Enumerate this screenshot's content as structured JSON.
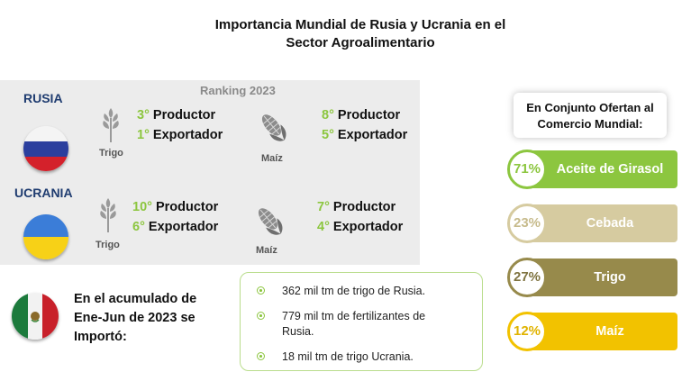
{
  "title": {
    "line1": "Importancia Mundial de Rusia y Ucrania en el",
    "line2": "Sector Agroalimentario"
  },
  "ranking_label": "Ranking 2023",
  "countries": [
    {
      "name": "RUSIA",
      "wheat": {
        "label": "Trigo",
        "productor_num": "3°",
        "productor_text": " Productor",
        "exportador_num": "1°",
        "exportador_text": " Exportador"
      },
      "corn": {
        "label": "Maíz",
        "productor_num": "8°",
        "productor_text": " Productor",
        "exportador_num": "5°",
        "exportador_text": " Exportador"
      }
    },
    {
      "name": "UCRANIA",
      "wheat": {
        "label": "Trigo",
        "productor_num": "10°",
        "productor_text": " Productor",
        "exportador_num": "6°",
        "exportador_text": " Exportador"
      },
      "corn": {
        "label": "Maíz",
        "productor_num": "7°",
        "productor_text": " Productor",
        "exportador_num": "4°",
        "exportador_text": " Exportador"
      }
    }
  ],
  "mexico": {
    "text_line1": "En el acumulado de",
    "text_line2": "Ene-Jun de 2023 se",
    "text_line3": "Importó:",
    "items": [
      {
        "line1": "362 mil tm de trigo de Rusia.",
        "line2": ""
      },
      {
        "line1": "779 mil tm de fertilizantes de",
        "line2": "Rusia."
      },
      {
        "line1": "18 mil tm de  trigo Ucrania.",
        "line2": ""
      }
    ]
  },
  "right": {
    "header_line1": "En Conjunto Ofertan al",
    "header_line2": "Comercio Mundial:",
    "items": [
      {
        "pct": "71%",
        "label": "Aceite de Girasol",
        "color": "#8cc63f"
      },
      {
        "pct": "23%",
        "label": "Cebada",
        "color": "#d6cba0"
      },
      {
        "pct": "27%",
        "label": "Trigo",
        "color": "#978a4b"
      },
      {
        "pct": "12%",
        "label": "Maíz",
        "color": "#f2c200"
      }
    ]
  }
}
